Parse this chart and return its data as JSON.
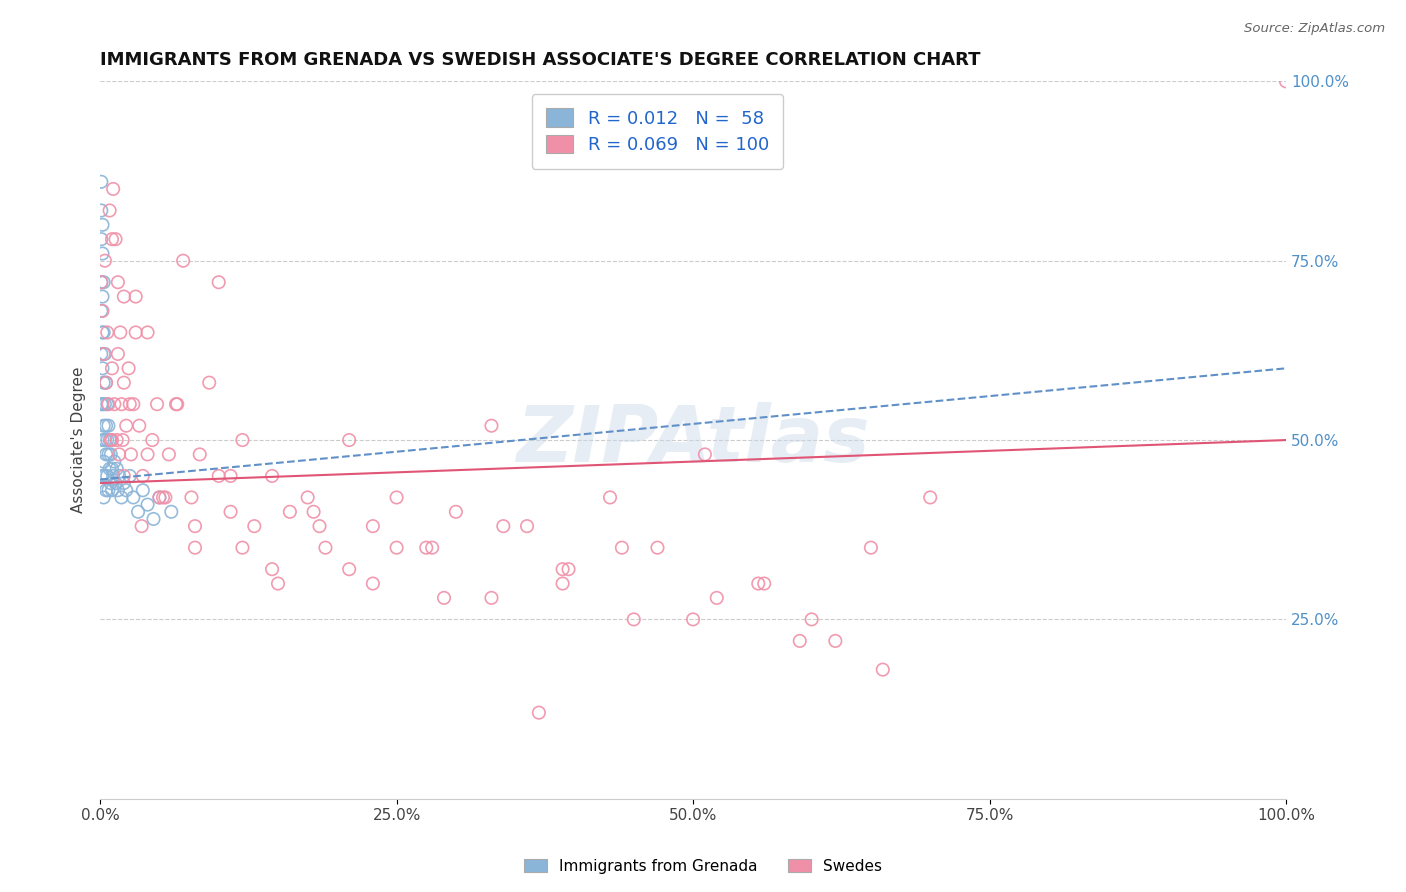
{
  "title": "IMMIGRANTS FROM GRENADA VS SWEDISH ASSOCIATE'S DEGREE CORRELATION CHART",
  "source_text": "Source: ZipAtlas.com",
  "ylabel": "Associate's Degree",
  "right_ytick_labels": [
    "25.0%",
    "50.0%",
    "75.0%",
    "100.0%"
  ],
  "right_ytick_values": [
    0.25,
    0.5,
    0.75,
    1.0
  ],
  "xmin": 0.0,
  "xmax": 1.0,
  "ymin": 0.0,
  "ymax": 1.0,
  "blue_R": 0.012,
  "blue_N": 58,
  "pink_R": 0.069,
  "pink_N": 100,
  "blue_scatter_color": "#8ab4d8",
  "pink_scatter_color": "#f090a8",
  "trend_blue_color": "#6090c8",
  "trend_pink_color": "#e05575",
  "legend_label_blue": "Immigrants from Grenada",
  "legend_label_pink": "Swedes",
  "watermark": "ZIPAtlas",
  "title_fontsize": 13,
  "background_color": "#ffffff",
  "grid_color": "#cccccc",
  "blue_x": [
    0.001,
    0.001,
    0.001,
    0.001,
    0.001,
    0.001,
    0.001,
    0.002,
    0.002,
    0.002,
    0.002,
    0.002,
    0.002,
    0.002,
    0.002,
    0.003,
    0.003,
    0.003,
    0.003,
    0.003,
    0.003,
    0.004,
    0.004,
    0.004,
    0.004,
    0.005,
    0.005,
    0.005,
    0.005,
    0.006,
    0.006,
    0.006,
    0.007,
    0.007,
    0.007,
    0.008,
    0.008,
    0.009,
    0.009,
    0.01,
    0.01,
    0.011,
    0.012,
    0.013,
    0.014,
    0.015,
    0.016,
    0.018,
    0.02,
    0.022,
    0.025,
    0.028,
    0.032,
    0.036,
    0.04,
    0.045,
    0.05,
    0.06
  ],
  "blue_y": [
    0.86,
    0.82,
    0.78,
    0.72,
    0.68,
    0.62,
    0.55,
    0.8,
    0.76,
    0.7,
    0.65,
    0.6,
    0.55,
    0.5,
    0.45,
    0.72,
    0.65,
    0.58,
    0.52,
    0.47,
    0.42,
    0.62,
    0.55,
    0.5,
    0.45,
    0.58,
    0.52,
    0.48,
    0.43,
    0.55,
    0.5,
    0.45,
    0.52,
    0.48,
    0.43,
    0.5,
    0.46,
    0.48,
    0.44,
    0.46,
    0.43,
    0.45,
    0.47,
    0.44,
    0.46,
    0.43,
    0.45,
    0.42,
    0.44,
    0.43,
    0.45,
    0.42,
    0.4,
    0.43,
    0.41,
    0.39,
    0.42,
    0.4
  ],
  "pink_x": [
    0.001,
    0.002,
    0.003,
    0.004,
    0.005,
    0.006,
    0.007,
    0.008,
    0.009,
    0.01,
    0.011,
    0.012,
    0.013,
    0.014,
    0.015,
    0.016,
    0.017,
    0.018,
    0.019,
    0.02,
    0.022,
    0.024,
    0.026,
    0.028,
    0.03,
    0.033,
    0.036,
    0.04,
    0.044,
    0.048,
    0.053,
    0.058,
    0.064,
    0.07,
    0.077,
    0.084,
    0.092,
    0.1,
    0.11,
    0.12,
    0.13,
    0.145,
    0.16,
    0.175,
    0.19,
    0.21,
    0.23,
    0.25,
    0.275,
    0.3,
    0.33,
    0.36,
    0.395,
    0.43,
    0.47,
    0.51,
    0.555,
    0.6,
    0.65,
    0.7,
    0.01,
    0.015,
    0.02,
    0.025,
    0.03,
    0.04,
    0.05,
    0.065,
    0.08,
    0.1,
    0.12,
    0.15,
    0.18,
    0.21,
    0.25,
    0.29,
    0.34,
    0.39,
    0.44,
    0.5,
    0.56,
    0.62,
    0.01,
    0.02,
    0.035,
    0.055,
    0.08,
    0.11,
    0.145,
    0.185,
    0.23,
    0.28,
    0.33,
    0.39,
    0.45,
    0.52,
    0.59,
    0.66,
    0.37,
    1.0
  ],
  "pink_y": [
    0.72,
    0.68,
    0.62,
    0.75,
    0.58,
    0.65,
    0.55,
    0.82,
    0.5,
    0.6,
    0.85,
    0.55,
    0.78,
    0.5,
    0.72,
    0.48,
    0.65,
    0.55,
    0.5,
    0.58,
    0.52,
    0.6,
    0.48,
    0.55,
    0.7,
    0.52,
    0.45,
    0.65,
    0.5,
    0.55,
    0.42,
    0.48,
    0.55,
    0.75,
    0.42,
    0.48,
    0.58,
    0.72,
    0.45,
    0.5,
    0.38,
    0.45,
    0.4,
    0.42,
    0.35,
    0.5,
    0.38,
    0.42,
    0.35,
    0.4,
    0.52,
    0.38,
    0.32,
    0.42,
    0.35,
    0.48,
    0.3,
    0.25,
    0.35,
    0.42,
    0.78,
    0.62,
    0.7,
    0.55,
    0.65,
    0.48,
    0.42,
    0.55,
    0.38,
    0.45,
    0.35,
    0.3,
    0.4,
    0.32,
    0.35,
    0.28,
    0.38,
    0.3,
    0.35,
    0.25,
    0.3,
    0.22,
    0.5,
    0.45,
    0.38,
    0.42,
    0.35,
    0.4,
    0.32,
    0.38,
    0.3,
    0.35,
    0.28,
    0.32,
    0.25,
    0.28,
    0.22,
    0.18,
    0.12,
    1.0
  ]
}
